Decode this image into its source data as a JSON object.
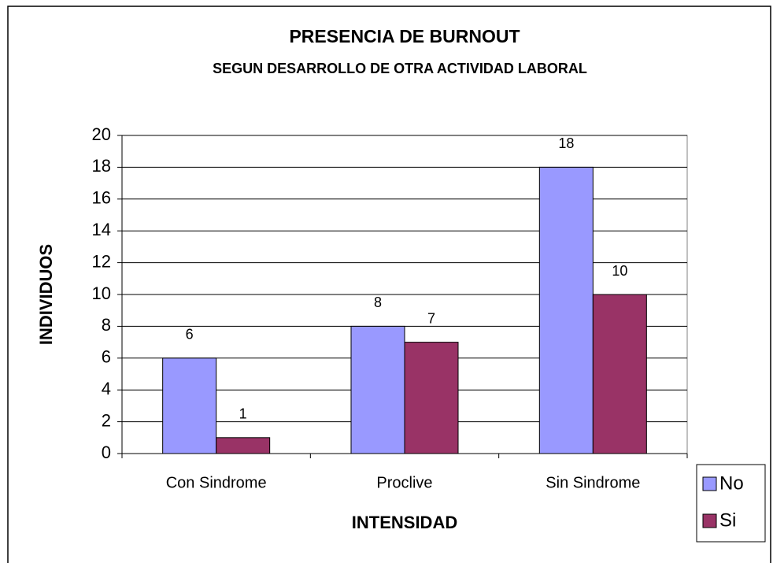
{
  "chart_data": {
    "type": "bar",
    "title": "PRESENCIA DE BURNOUT",
    "subtitle": "SEGUN DESARROLLO DE OTRA ACTIVIDAD LABORAL",
    "x_label": "INTENSIDAD",
    "y_label": "INDIVIDUOS",
    "categories": [
      "Con Sindrome",
      "Proclive",
      "Sin Sindrome"
    ],
    "series": [
      {
        "name": "No",
        "color": "#9999ff",
        "values": [
          6,
          8,
          18
        ]
      },
      {
        "name": "Si",
        "color": "#993366",
        "values": [
          1,
          7,
          10
        ]
      }
    ],
    "ylim": [
      0,
      20
    ],
    "yticks": [
      0,
      2,
      4,
      6,
      8,
      10,
      12,
      14,
      16,
      18,
      20
    ],
    "grid": true,
    "legend": "right"
  }
}
